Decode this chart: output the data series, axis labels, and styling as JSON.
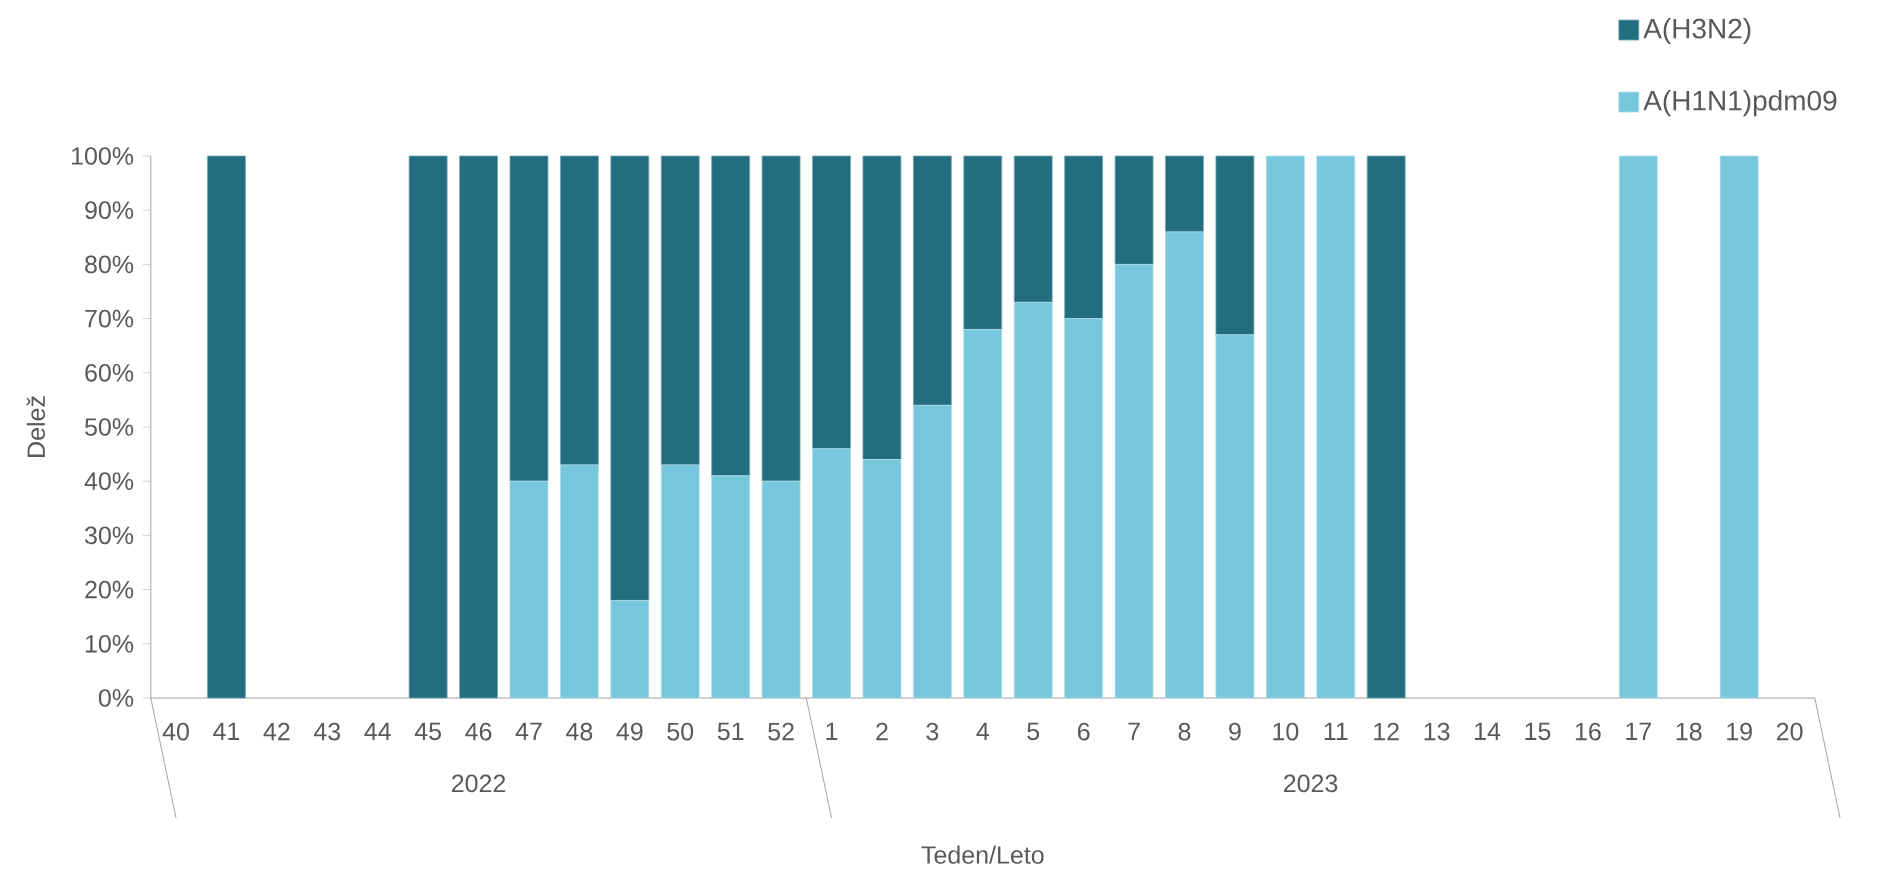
{
  "chart_data": {
    "type": "bar",
    "stacked": true,
    "xlabel": "Teden/Leto",
    "ylabel": "Delež",
    "categories": [
      "40",
      "41",
      "42",
      "43",
      "44",
      "45",
      "46",
      "47",
      "48",
      "49",
      "50",
      "51",
      "52",
      "1",
      "2",
      "3",
      "4",
      "5",
      "6",
      "7",
      "8",
      "9",
      "10",
      "11",
      "12",
      "13",
      "14",
      "15",
      "16",
      "17",
      "18",
      "19",
      "20"
    ],
    "series": [
      {
        "name": "A(H1N1)pdm09",
        "color": "#76c7db",
        "values": [
          null,
          null,
          null,
          null,
          null,
          null,
          null,
          40,
          43,
          18,
          43,
          41,
          40,
          46,
          44,
          54,
          68,
          73,
          70,
          80,
          86,
          67,
          100,
          100,
          null,
          null,
          null,
          null,
          null,
          100,
          null,
          100,
          null
        ]
      },
      {
        "name": "A(H3N2)",
        "color": "#226d80",
        "values": [
          null,
          100,
          null,
          null,
          null,
          100,
          100,
          60,
          57,
          82,
          57,
          59,
          60,
          54,
          56,
          46,
          32,
          27,
          30,
          20,
          14,
          33,
          null,
          null,
          100,
          null,
          null,
          null,
          null,
          null,
          null,
          null,
          null
        ]
      }
    ],
    "ylim": [
      0,
      100
    ],
    "yticks": [
      {
        "value": 0,
        "label": "0%"
      },
      {
        "value": 10,
        "label": "10%"
      },
      {
        "value": 20,
        "label": "20%"
      },
      {
        "value": 30,
        "label": "30%"
      },
      {
        "value": 40,
        "label": "40%"
      },
      {
        "value": 50,
        "label": "50%"
      },
      {
        "value": 60,
        "label": "60%"
      },
      {
        "value": 70,
        "label": "70%"
      },
      {
        "value": 80,
        "label": "80%"
      },
      {
        "value": 90,
        "label": "90%"
      },
      {
        "value": 100,
        "label": "100%"
      }
    ],
    "annotations": [
      "2022",
      "2023"
    ],
    "legend": "top right",
    "grid": false
  }
}
